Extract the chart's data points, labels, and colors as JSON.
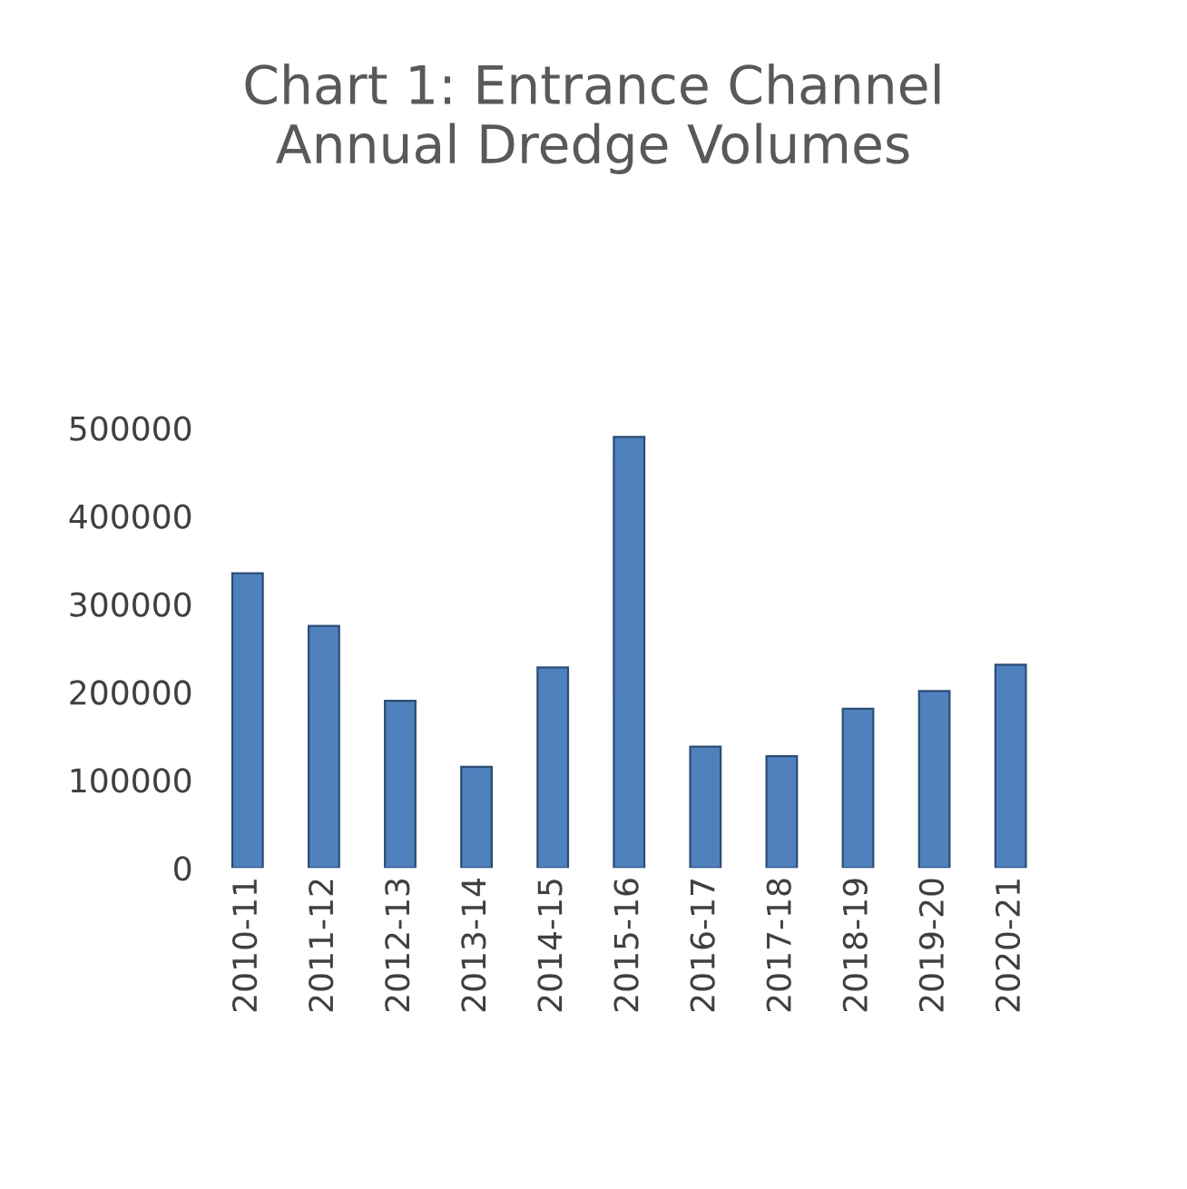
{
  "chart_data": {
    "type": "bar",
    "title": "Chart 1: Entrance Channel\nAnnual Dredge Volumes",
    "categories": [
      "2010-11",
      "2011-12",
      "2012-13",
      "2013-14",
      "2014-15",
      "2015-16",
      "2016-17",
      "2017-18",
      "2018-19",
      "2019-20",
      "2020-21"
    ],
    "values": [
      335000,
      275000,
      190000,
      115000,
      228000,
      490000,
      138000,
      127000,
      181000,
      201000,
      231000
    ],
    "color": "#4f81bd",
    "ylim": [
      0,
      500000
    ],
    "yticks": [
      0,
      100000,
      200000,
      300000,
      400000,
      500000
    ],
    "grid": false,
    "legend": false
  }
}
